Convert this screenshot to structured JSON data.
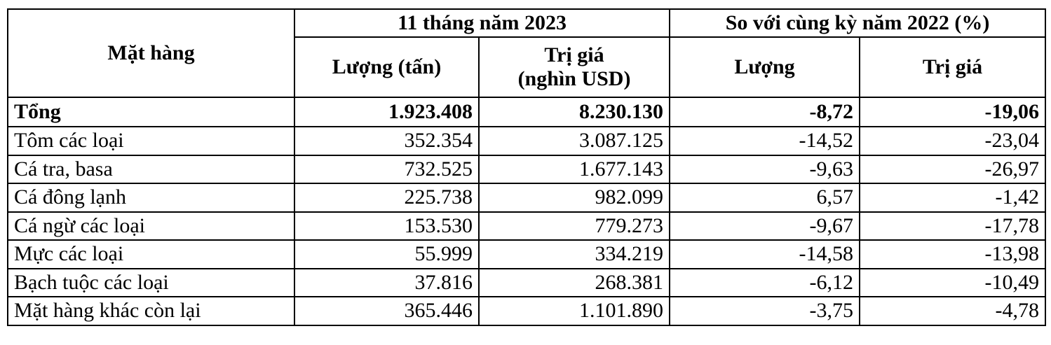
{
  "table": {
    "header": {
      "item": "Mặt hàng",
      "group1": "11 tháng năm 2023",
      "group2": "So với cùng kỳ năm 2022 (%)",
      "columns": [
        "Lượng (tấn)",
        "Trị giá\n(nghìn USD)",
        "Lượng",
        "Trị giá"
      ]
    },
    "rows": [
      [
        "Tổng",
        "1.923.408",
        "8.230.130",
        "-8,72",
        "-19,06"
      ],
      [
        "Tôm các loại",
        "352.354",
        "3.087.125",
        "-14,52",
        "-23,04"
      ],
      [
        "Cá tra, basa",
        "732.525",
        "1.677.143",
        "-9,63",
        "-26,97"
      ],
      [
        "Cá đông lạnh",
        "225.738",
        "982.099",
        "6,57",
        "-1,42"
      ],
      [
        "Cá ngừ các loại",
        "153.530",
        "779.273",
        "-9,67",
        "-17,78"
      ],
      [
        "Mực các loại",
        "55.999",
        "334.219",
        "-14,58",
        "-13,98"
      ],
      [
        "Bạch tuộc các loại",
        "37.816",
        "268.381",
        "-6,12",
        "-10,49"
      ],
      [
        "Mặt hàng khác còn lại",
        "365.446",
        "1.101.890",
        "-3,75",
        "-4,78"
      ]
    ]
  }
}
